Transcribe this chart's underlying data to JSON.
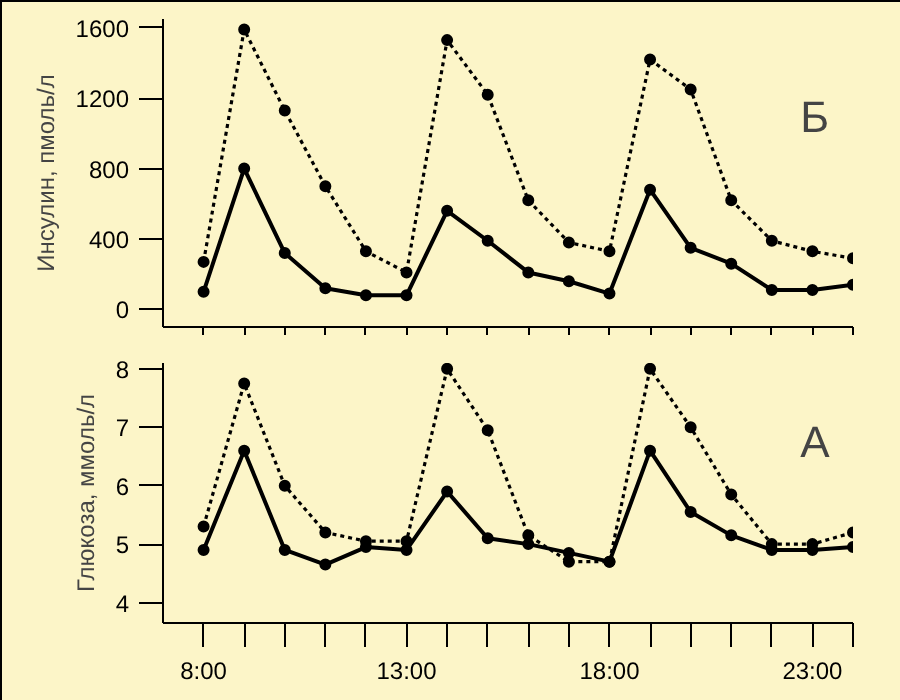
{
  "chart_data": [
    {
      "type": "line",
      "ylabel": "Инсулин, пмоль/л",
      "annotations": [
        "Б"
      ],
      "x": [
        8,
        9,
        10,
        11,
        12,
        13,
        14,
        15,
        16,
        17,
        18,
        19,
        20,
        21,
        22,
        23,
        24
      ],
      "xlim": [
        7,
        24
      ],
      "ylim": [
        -100,
        1650
      ],
      "yticks": [
        0,
        400,
        800,
        1200,
        1600
      ],
      "tick_labels": "y",
      "grid": false,
      "marker": "circle",
      "xticks": [
        {
          "value": 8,
          "label": null
        },
        {
          "value": 9,
          "label": null
        },
        {
          "value": 10,
          "label": null
        },
        {
          "value": 11,
          "label": null
        },
        {
          "value": 12,
          "label": null
        },
        {
          "value": 13,
          "label": null
        },
        {
          "value": 14,
          "label": null
        },
        {
          "value": 15,
          "label": null
        },
        {
          "value": 16,
          "label": null
        },
        {
          "value": 17,
          "label": null
        },
        {
          "value": 18,
          "label": null
        },
        {
          "value": 19,
          "label": null
        },
        {
          "value": 20,
          "label": null
        },
        {
          "value": 21,
          "label": null
        },
        {
          "value": 22,
          "label": null
        },
        {
          "value": 23,
          "label": null
        },
        {
          "value": 24,
          "label": null
        }
      ],
      "series": [
        {
          "color": "#000000",
          "line_style": "dotted",
          "values": [
            270,
            1590,
            1130,
            700,
            330,
            210,
            1530,
            1220,
            620,
            380,
            330,
            1420,
            1250,
            620,
            390,
            330,
            290
          ]
        },
        {
          "color": "#000000",
          "line_style": "solid",
          "values": [
            100,
            800,
            320,
            120,
            80,
            80,
            560,
            390,
            210,
            160,
            90,
            680,
            350,
            260,
            110,
            110,
            140
          ]
        }
      ]
    },
    {
      "type": "line",
      "ylabel": "Глюкоза, ммоль/л",
      "annotations": [
        "А"
      ],
      "x": [
        8,
        9,
        10,
        11,
        12,
        13,
        14,
        15,
        16,
        17,
        18,
        19,
        20,
        21,
        22,
        23,
        24
      ],
      "xlim": [
        7,
        24
      ],
      "ylim": [
        3.65,
        8.1
      ],
      "yticks": [
        4,
        5,
        6,
        7,
        8
      ],
      "xticks": [
        {
          "value": 8,
          "label": "8:00"
        },
        {
          "value": 9,
          "label": null
        },
        {
          "value": 10,
          "label": null
        },
        {
          "value": 11,
          "label": null
        },
        {
          "value": 12,
          "label": null
        },
        {
          "value": 13,
          "label": "13:00"
        },
        {
          "value": 14,
          "label": null
        },
        {
          "value": 15,
          "label": null
        },
        {
          "value": 16,
          "label": null
        },
        {
          "value": 17,
          "label": null
        },
        {
          "value": 18,
          "label": "18:00"
        },
        {
          "value": 19,
          "label": null
        },
        {
          "value": 20,
          "label": null
        },
        {
          "value": 21,
          "label": null
        },
        {
          "value": 22,
          "label": null
        },
        {
          "value": 23,
          "label": "23:00"
        },
        {
          "value": 24,
          "label": null
        }
      ],
      "grid": false,
      "marker": "circle",
      "series": [
        {
          "color": "#000000",
          "line_style": "dotted",
          "values": [
            5.3,
            7.75,
            6.0,
            5.2,
            5.05,
            5.05,
            8.0,
            6.95,
            5.15,
            4.7,
            4.7,
            8.0,
            7.0,
            5.85,
            5.0,
            5.0,
            5.2
          ]
        },
        {
          "color": "#000000",
          "line_style": "solid",
          "values": [
            4.9,
            6.6,
            4.9,
            4.65,
            4.95,
            4.9,
            5.9,
            5.1,
            5.0,
            4.85,
            4.7,
            6.6,
            5.55,
            5.15,
            4.9,
            4.9,
            4.95
          ]
        }
      ]
    }
  ]
}
